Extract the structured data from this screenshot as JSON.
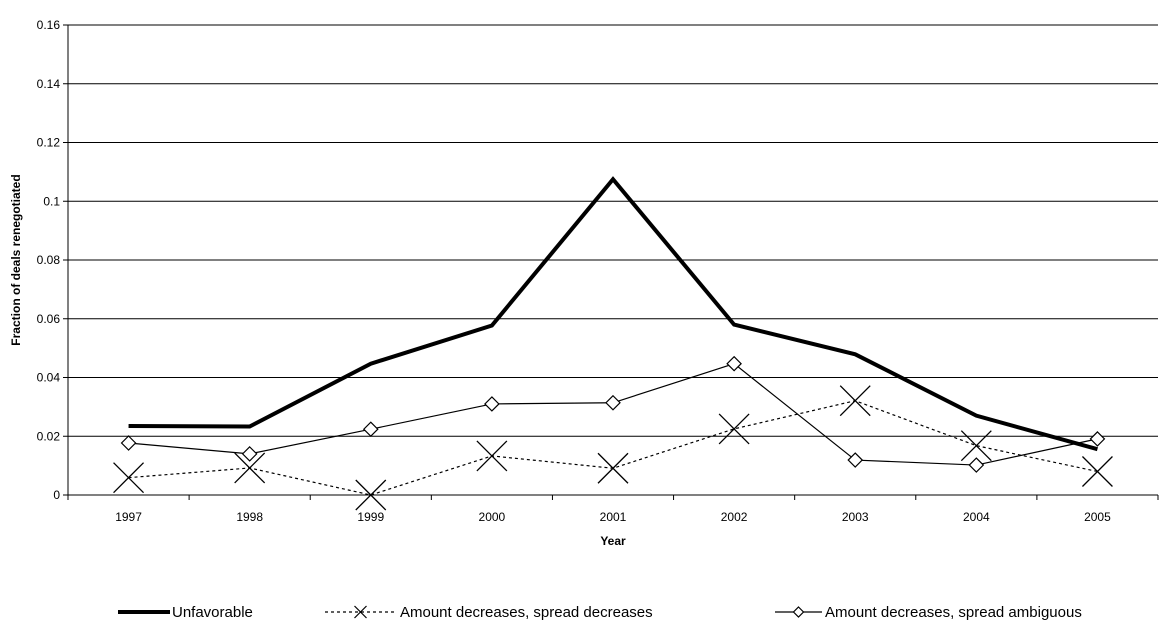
{
  "chart_data": {
    "type": "line",
    "title": "",
    "xlabel": "Year",
    "ylabel": "Fraction of deals renegotiated",
    "categories": [
      "1997",
      "1998",
      "1999",
      "2000",
      "2001",
      "2002",
      "2003",
      "2004",
      "2005"
    ],
    "ylim": [
      0,
      0.16
    ],
    "yticks": [
      "0",
      "0.02",
      "0.04",
      "0.06",
      "0.08",
      "0.1",
      "0.12",
      "0.14",
      "0.16"
    ],
    "ytick_values": [
      0,
      0.02,
      0.04,
      0.06,
      0.08,
      0.1,
      0.12,
      0.14,
      0.16
    ],
    "grid": "horizontal",
    "legend_position": "bottom",
    "series": [
      {
        "name": "Unfavorable",
        "style": "thick-solid",
        "marker": "none",
        "color": "#000000",
        "values": [
          0.0235,
          0.0233,
          0.0447,
          0.0577,
          0.1075,
          0.058,
          0.0479,
          0.027,
          0.0156
        ]
      },
      {
        "name": "Amount decreases, spread decreases",
        "style": "dotted",
        "marker": "x",
        "color": "#000000",
        "values": [
          0.0059,
          0.0092,
          0.0,
          0.0133,
          0.0091,
          0.0225,
          0.0321,
          0.0168,
          0.008
        ]
      },
      {
        "name": "Amount decreases, spread ambiguous",
        "style": "thin-solid",
        "marker": "diamond",
        "color": "#000000",
        "values": [
          0.0177,
          0.014,
          0.0224,
          0.031,
          0.0314,
          0.0447,
          0.0119,
          0.0102,
          0.0191
        ]
      }
    ]
  }
}
